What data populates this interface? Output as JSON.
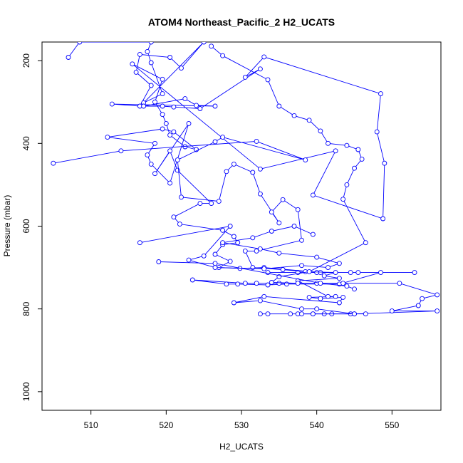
{
  "chart_data": {
    "type": "line",
    "title": "ATOM4 Northeast_Pacific_2 H2_UCATS",
    "xlabel": "H2_UCATS",
    "ylabel": "Pressure (mbar)",
    "xlim": [
      503.5,
      556.5
    ],
    "ylim": [
      1045,
      155
    ],
    "y_reversed": true,
    "x_ticks": [
      510,
      520,
      530,
      540,
      550
    ],
    "y_ticks": [
      200,
      400,
      600,
      800,
      1000
    ],
    "series_color": "#0000ff",
    "marker": "open-circle",
    "grid": false,
    "legend": "none",
    "series": [
      {
        "points": [
          [
            507.0,
            192
          ],
          [
            508.5,
            155
          ],
          [
            518.0,
            155
          ],
          [
            517.5,
            178
          ],
          [
            518.0,
            205
          ],
          [
            519.5,
            280
          ],
          [
            517.0,
            302
          ],
          [
            525.0,
            155
          ],
          [
            522.0,
            218
          ],
          [
            520.5,
            192
          ],
          [
            516.5,
            185
          ],
          [
            516.0,
            228
          ],
          [
            518.0,
            260
          ],
          [
            516.5,
            310
          ],
          [
            512.8,
            305
          ],
          [
            526.5,
            310
          ],
          [
            524.0,
            308
          ],
          [
            522.5,
            292
          ],
          [
            517.0,
            310
          ],
          [
            519.5,
            310
          ],
          [
            521.0,
            312
          ],
          [
            524.5,
            316
          ],
          [
            532.5,
            220
          ],
          [
            530.5,
            240
          ],
          [
            533.0,
            191
          ],
          [
            548.5,
            280
          ],
          [
            548.0,
            372
          ],
          [
            549.0,
            448
          ],
          [
            548.8,
            582
          ],
          [
            539.5,
            525
          ],
          [
            542.5,
            418
          ],
          [
            532.5,
            462
          ],
          [
            515.5,
            208
          ],
          [
            519.5,
            245
          ],
          [
            518.5,
            300
          ],
          [
            519.5,
            330
          ],
          [
            520.0,
            352
          ],
          [
            520.5,
            380
          ],
          [
            522.5,
            408
          ],
          [
            524.0,
            415
          ],
          [
            521.0,
            372
          ],
          [
            519.5,
            365
          ],
          [
            512.2,
            385
          ],
          [
            518.5,
            400
          ],
          [
            517.5,
            428
          ],
          [
            518.0,
            450
          ],
          [
            520.5,
            496
          ],
          [
            523.0,
            352
          ],
          [
            518.5,
            473
          ],
          [
            520.5,
            418
          ],
          [
            521.5,
            465
          ],
          [
            526.0,
            545
          ],
          [
            524.5,
            545
          ],
          [
            521.0,
            578
          ],
          [
            521.8,
            595
          ],
          [
            527.5,
            610
          ],
          [
            529.0,
            625
          ],
          [
            529.5,
            640
          ],
          [
            527.5,
            645
          ],
          [
            526.5,
            668
          ],
          [
            528.5,
            685
          ],
          [
            527.0,
            700
          ],
          [
            529.8,
            702
          ],
          [
            533.0,
            700
          ],
          [
            540.5,
            712
          ],
          [
            533.5,
            712
          ],
          [
            537.5,
            712
          ],
          [
            540.0,
            712
          ],
          [
            544.5,
            712
          ],
          [
            545.5,
            712
          ],
          [
            553.0,
            712
          ],
          [
            548.5,
            712
          ],
          [
            543.0,
            740
          ],
          [
            536.0,
            740
          ],
          [
            533.5,
            742
          ],
          [
            529.5,
            740
          ],
          [
            528.0,
            740
          ],
          [
            523.5,
            730
          ],
          [
            530.5,
            738
          ],
          [
            532.0,
            738
          ],
          [
            535.0,
            738
          ],
          [
            540.0,
            738
          ],
          [
            543.5,
            738
          ],
          [
            551.0,
            738
          ],
          [
            556.0,
            766
          ],
          [
            554.0,
            775
          ],
          [
            553.5,
            792
          ],
          [
            550.0,
            805
          ],
          [
            556.0,
            805
          ],
          [
            545.0,
            812
          ],
          [
            541.0,
            812
          ],
          [
            536.5,
            812
          ],
          [
            532.5,
            812
          ],
          [
            533.5,
            812
          ],
          [
            537.5,
            812
          ],
          [
            539.5,
            812
          ],
          [
            542.0,
            812
          ],
          [
            544.5,
            812
          ],
          [
            546.5,
            812
          ]
        ]
      },
      {
        "points": [
          [
            505.0,
            448
          ],
          [
            514.0,
            418
          ],
          [
            532.0,
            395
          ],
          [
            538.5,
            440
          ],
          [
            527.5,
            385
          ],
          [
            526.5,
            396
          ],
          [
            521.5,
            440
          ],
          [
            522.0,
            530
          ],
          [
            527.0,
            540
          ],
          [
            528.0,
            468
          ],
          [
            529.0,
            450
          ],
          [
            531.5,
            470
          ],
          [
            532.5,
            522
          ],
          [
            535.0,
            592
          ],
          [
            534.0,
            566
          ],
          [
            535.5,
            536
          ],
          [
            537.5,
            560
          ],
          [
            538.0,
            634
          ],
          [
            532.0,
            660
          ],
          [
            530.5,
            660
          ],
          [
            531.5,
            700
          ],
          [
            535.5,
            705
          ],
          [
            538.5,
            710
          ],
          [
            542.5,
            712
          ],
          [
            541.0,
            720
          ],
          [
            543.0,
            726
          ],
          [
            537.5,
            732
          ],
          [
            541.5,
            770
          ],
          [
            542.5,
            770
          ],
          [
            539.0,
            772
          ],
          [
            540.5,
            775
          ],
          [
            543.5,
            772
          ],
          [
            543.0,
            785
          ],
          [
            533.0,
            770
          ],
          [
            529.0,
            785
          ],
          [
            532.5,
            780
          ],
          [
            538.0,
            800
          ],
          [
            540.0,
            800
          ],
          [
            545.0,
            812
          ],
          [
            539.5,
            812
          ],
          [
            538.0,
            812
          ]
        ]
      },
      {
        "points": [
          [
            526.0,
            165
          ],
          [
            527.5,
            188
          ],
          [
            533.5,
            246
          ],
          [
            535.0,
            310
          ],
          [
            537.0,
            333
          ],
          [
            539.0,
            344
          ],
          [
            540.5,
            370
          ],
          [
            541.5,
            400
          ],
          [
            544.0,
            405
          ],
          [
            545.5,
            415
          ],
          [
            546.0,
            438
          ],
          [
            545.0,
            460
          ],
          [
            544.0,
            500
          ],
          [
            543.5,
            535
          ],
          [
            546.5,
            640
          ],
          [
            539.0,
            710
          ],
          [
            535.0,
            722
          ],
          [
            534.0,
            736
          ],
          [
            537.5,
            738
          ]
        ]
      },
      {
        "points": [
          [
            516.5,
            640
          ],
          [
            528.5,
            600
          ],
          [
            525.0,
            672
          ],
          [
            523.0,
            682
          ],
          [
            526.5,
            700
          ],
          [
            533.0,
            703
          ],
          [
            538.0,
            695
          ],
          [
            541.5,
            700
          ],
          [
            543.0,
            690
          ],
          [
            540.0,
            675
          ],
          [
            535.0,
            665
          ],
          [
            532.5,
            655
          ],
          [
            527.5,
            640
          ],
          [
            531.5,
            628
          ],
          [
            534.0,
            612
          ],
          [
            537.0,
            600
          ],
          [
            539.5,
            620
          ]
        ]
      },
      {
        "points": [
          [
            519.0,
            686
          ],
          [
            526.5,
            690
          ],
          [
            540.5,
            738
          ],
          [
            544.0,
            745
          ],
          [
            545.0,
            752
          ]
        ]
      }
    ]
  }
}
